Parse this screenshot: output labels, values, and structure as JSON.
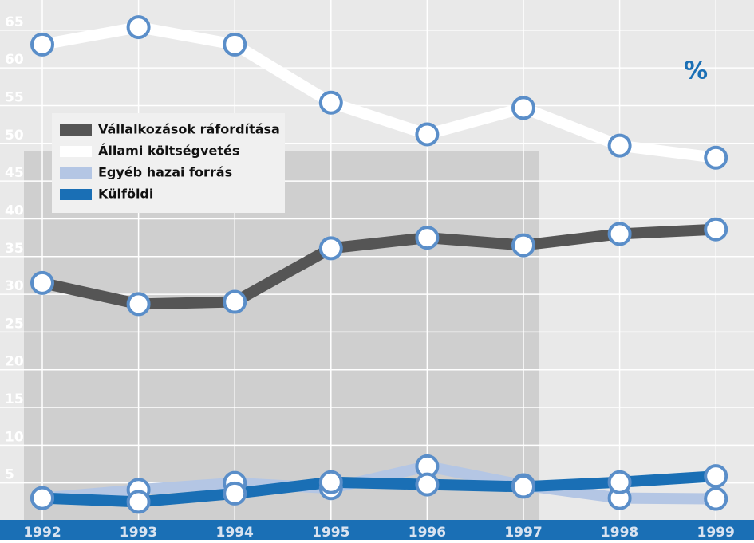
{
  "chart_data": {
    "type": "line",
    "unit_label": "%",
    "categories": [
      "1992",
      "1993",
      "1994",
      "1995",
      "1996",
      "1997",
      "1998",
      "1999"
    ],
    "series": [
      {
        "name": "Vállalkozások ráfordítása",
        "color": "#555555",
        "values": [
          31.5,
          28.7,
          29.0,
          36.1,
          37.5,
          36.5,
          38.0,
          38.6
        ]
      },
      {
        "name": "Állami költségvetés",
        "color": "#ffffff",
        "values": [
          63.1,
          65.4,
          63.1,
          55.4,
          51.2,
          54.7,
          49.7,
          48.1
        ]
      },
      {
        "name": "Egyéb hazai forrás",
        "color": "#b4c6e4",
        "values": [
          3.0,
          4.1,
          5.0,
          4.3,
          7.2,
          4.7,
          3.0,
          2.9
        ]
      },
      {
        "name": "Külföldi",
        "color": "#1a6fb5",
        "values": [
          3.0,
          2.5,
          3.6,
          5.1,
          4.8,
          4.5,
          5.1,
          5.9
        ]
      }
    ],
    "ylim": [
      0,
      69
    ],
    "yticks": [
      5,
      10,
      15,
      20,
      25,
      30,
      35,
      40,
      45,
      50,
      55,
      60,
      65
    ],
    "grid": true,
    "legend": "upper left"
  }
}
